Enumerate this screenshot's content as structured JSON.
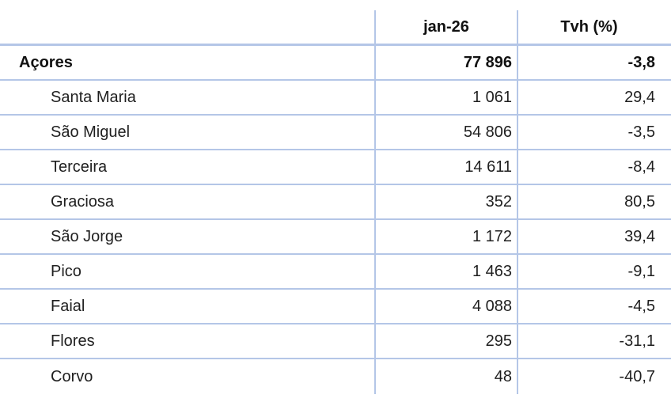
{
  "table": {
    "header": {
      "col_value": "jan-26",
      "col_tvh": "Tvh (%)"
    },
    "rows": [
      {
        "name": "Açores",
        "value": "77 896",
        "tvh": "-3,8"
      },
      {
        "name": "Santa Maria",
        "value": "1 061",
        "tvh": "29,4"
      },
      {
        "name": "São Miguel",
        "value": "54 806",
        "tvh": "-3,5"
      },
      {
        "name": "Terceira",
        "value": "14 611",
        "tvh": "-8,4"
      },
      {
        "name": "Graciosa",
        "value": "352",
        "tvh": "80,5"
      },
      {
        "name": "São Jorge",
        "value": "1 172",
        "tvh": "39,4"
      },
      {
        "name": "Pico",
        "value": "1 463",
        "tvh": "-9,1"
      },
      {
        "name": "Faial",
        "value": "4 088",
        "tvh": "-4,5"
      },
      {
        "name": "Flores",
        "value": "295",
        "tvh": "-31,1"
      },
      {
        "name": "Corvo",
        "value": "48",
        "tvh": "-40,7"
      }
    ],
    "colors": {
      "grid_line": "#b4c6e7",
      "text": "#1f1f1f"
    }
  },
  "chart_data": {
    "type": "table",
    "title": "",
    "columns": [
      "",
      "jan-26",
      "Tvh (%)"
    ],
    "region_total": {
      "name": "Açores",
      "jan26": 77896,
      "tvh_pct": -3.8
    },
    "categories": [
      "Santa Maria",
      "São Miguel",
      "Terceira",
      "Graciosa",
      "São Jorge",
      "Pico",
      "Faial",
      "Flores",
      "Corvo"
    ],
    "series": [
      {
        "name": "jan-26",
        "values": [
          1061,
          54806,
          14611,
          352,
          1172,
          1463,
          4088,
          295,
          48
        ]
      },
      {
        "name": "Tvh (%)",
        "values": [
          29.4,
          -3.5,
          -8.4,
          80.5,
          39.4,
          -9.1,
          -4.5,
          -31.1,
          -40.7
        ]
      }
    ],
    "number_format": {
      "thousands_separator": " ",
      "decimal_separator": ","
    },
    "layout": {
      "grid": "horizontal light-blue rules",
      "value_alignment": "right",
      "header_alignment": "center"
    }
  }
}
